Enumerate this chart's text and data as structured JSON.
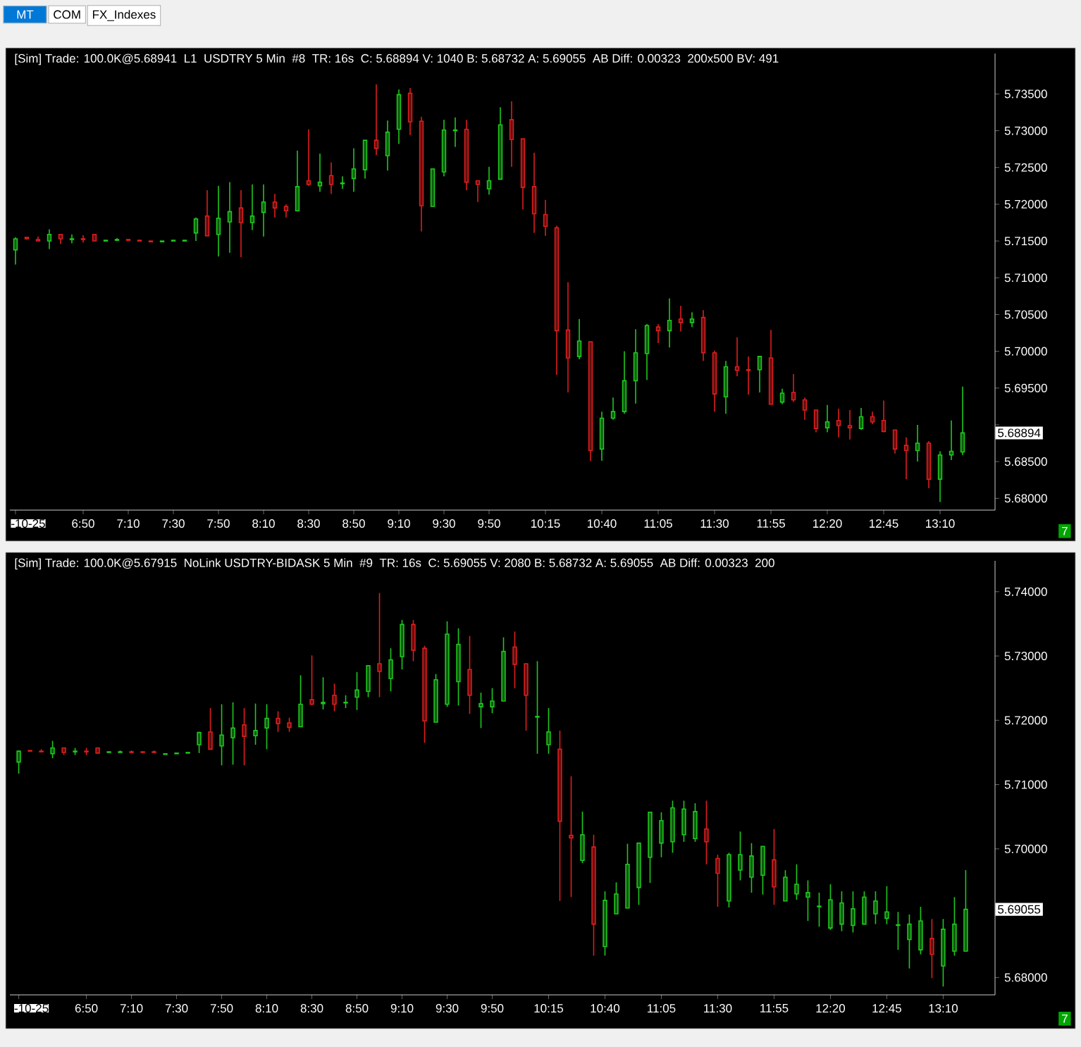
{
  "chart_data": [
    {
      "type": "other",
      "annotations": [
        "MT",
        "COM",
        "FX_Indexes"
      ]
    },
    {
      "type": "candlestick",
      "x": [
        6.3333,
        6.4167,
        6.5,
        6.5833,
        6.6667,
        6.75,
        6.8333,
        6.9167,
        7,
        7.0833,
        7.1667,
        7.25,
        7.3333,
        7.4167,
        7.5,
        7.5833,
        7.6667,
        7.75,
        7.8333,
        7.9167,
        8,
        8.0833,
        8.1667,
        8.25,
        8.3333,
        8.4167,
        8.5,
        8.5833,
        8.6667,
        8.75,
        8.8333,
        8.9167,
        9,
        9.0833,
        9.1667,
        9.25,
        9.3333,
        9.4167,
        9.5,
        9.5833,
        9.6667,
        9.75,
        9.8333,
        9.9167,
        10,
        10.0833,
        10.1667,
        10.25,
        10.3333,
        10.4167,
        10.5,
        10.5833,
        10.6667,
        10.75,
        10.8333,
        10.9167,
        11,
        11.0833,
        11.1667,
        11.25,
        11.3333,
        11.4167,
        11.5,
        11.5833,
        11.6667,
        11.75,
        11.8333,
        11.9167,
        12,
        12.0833,
        12.1667,
        12.25,
        12.3333,
        12.4167,
        12.5,
        12.5833,
        12.6667,
        12.75,
        12.8333,
        12.9167,
        13,
        13.0833,
        13.1667,
        13.25,
        13.3333
      ],
      "ohlc": [
        [
          5.7138,
          5.7155,
          5.7118,
          5.7153
        ],
        [
          5.7155,
          5.7155,
          5.7152,
          5.7153
        ],
        [
          5.7152,
          5.7156,
          5.715,
          5.715
        ],
        [
          5.715,
          5.7166,
          5.7139,
          5.7159
        ],
        [
          5.7159,
          5.7159,
          5.7146,
          5.7153
        ],
        [
          5.7152,
          5.7159,
          5.7147,
          5.7153
        ],
        [
          5.7153,
          5.7158,
          5.7148,
          5.7152
        ],
        [
          5.7159,
          5.7159,
          5.715,
          5.715
        ],
        [
          5.715,
          5.7151,
          5.715,
          5.7151
        ],
        [
          5.7151,
          5.7154,
          5.715,
          5.7152
        ],
        [
          5.7152,
          5.7152,
          5.7151,
          5.7151
        ],
        [
          5.7151,
          5.7151,
          5.715,
          5.715
        ],
        [
          5.715,
          5.715,
          5.7149,
          5.7149
        ],
        [
          5.7149,
          5.715,
          5.7149,
          5.715
        ],
        [
          5.715,
          5.7151,
          5.715,
          5.7151
        ],
        [
          5.715,
          5.7151,
          5.715,
          5.7151
        ],
        [
          5.7161,
          5.7182,
          5.715,
          5.718
        ],
        [
          5.7184,
          5.7219,
          5.7157,
          5.7157
        ],
        [
          5.7159,
          5.7225,
          5.7129,
          5.7181
        ],
        [
          5.7176,
          5.723,
          5.7134,
          5.719
        ],
        [
          5.7195,
          5.7219,
          5.7128,
          5.7175
        ],
        [
          5.7175,
          5.7227,
          5.7165,
          5.7184
        ],
        [
          5.7189,
          5.7227,
          5.7156,
          5.7203
        ],
        [
          5.7203,
          5.7214,
          5.7182,
          5.7195
        ],
        [
          5.7197,
          5.72,
          5.7182,
          5.7191
        ],
        [
          5.7191,
          5.7273,
          5.7191,
          5.7224
        ],
        [
          5.7232,
          5.7302,
          5.7225,
          5.7227
        ],
        [
          5.7225,
          5.7269,
          5.7217,
          5.723
        ],
        [
          5.7239,
          5.7257,
          5.7214,
          5.7227
        ],
        [
          5.7228,
          5.7238,
          5.7221,
          5.7229
        ],
        [
          5.7235,
          5.7276,
          5.7217,
          5.7248
        ],
        [
          5.7247,
          5.7287,
          5.7235,
          5.7287
        ],
        [
          5.7287,
          5.7363,
          5.7267,
          5.7276
        ],
        [
          5.7266,
          5.7314,
          5.7246,
          5.7298
        ],
        [
          5.7302,
          5.7356,
          5.7282,
          5.7349
        ],
        [
          5.7351,
          5.7358,
          5.7294,
          5.7312
        ],
        [
          5.7313,
          5.7319,
          5.7163,
          5.7198
        ],
        [
          5.7197,
          5.7248,
          5.7197,
          5.7248
        ],
        [
          5.7244,
          5.7315,
          5.7238,
          5.7301
        ],
        [
          5.73,
          5.7318,
          5.7278,
          5.7301
        ],
        [
          5.7302,
          5.7315,
          5.7219,
          5.723
        ],
        [
          5.7232,
          5.7232,
          5.7203,
          5.7227
        ],
        [
          5.7221,
          5.7251,
          5.7213,
          5.7232
        ],
        [
          5.7234,
          5.7332,
          5.7234,
          5.7308
        ],
        [
          5.7315,
          5.734,
          5.7251,
          5.7288
        ],
        [
          5.7289,
          5.7289,
          5.7193,
          5.7223
        ],
        [
          5.7224,
          5.727,
          5.7161,
          5.7187
        ],
        [
          5.7186,
          5.7206,
          5.7157,
          5.717
        ],
        [
          5.7168,
          5.7171,
          5.6968,
          5.7028
        ],
        [
          5.7029,
          5.7094,
          5.6944,
          5.6991
        ],
        [
          5.6993,
          5.7044,
          5.6989,
          5.7014
        ],
        [
          5.7013,
          5.7013,
          5.6851,
          5.6865
        ],
        [
          5.6867,
          5.6918,
          5.6851,
          5.6909
        ],
        [
          5.6909,
          5.6937,
          5.6907,
          5.6918
        ],
        [
          5.6918,
          5.7,
          5.6915,
          5.696
        ],
        [
          5.696,
          5.703,
          5.6929,
          5.6998
        ],
        [
          5.6997,
          5.7037,
          5.6961,
          5.7035
        ],
        [
          5.7033,
          5.7037,
          5.7011,
          5.7028
        ],
        [
          5.7028,
          5.7072,
          5.7005,
          5.7042
        ],
        [
          5.7044,
          5.7062,
          5.7027,
          5.7039
        ],
        [
          5.7039,
          5.7053,
          5.7033,
          5.7044
        ],
        [
          5.7046,
          5.7056,
          5.6987,
          5.6998
        ],
        [
          5.6998,
          5.7001,
          5.6918,
          5.6942
        ],
        [
          5.6938,
          5.6987,
          5.6915,
          5.6979
        ],
        [
          5.6979,
          5.7019,
          5.6966,
          5.6974
        ],
        [
          5.6975,
          5.6993,
          5.6941,
          5.6974
        ],
        [
          5.6975,
          5.6993,
          5.6944,
          5.6993
        ],
        [
          5.6991,
          5.7029,
          5.6928,
          5.6928
        ],
        [
          5.6931,
          5.6949,
          5.6928,
          5.6943
        ],
        [
          5.6944,
          5.6969,
          5.6931,
          5.6934
        ],
        [
          5.6934,
          5.6937,
          5.6907,
          5.692
        ],
        [
          5.692,
          5.692,
          5.689,
          5.6895
        ],
        [
          5.6896,
          5.6927,
          5.689,
          5.6904
        ],
        [
          5.6906,
          5.6922,
          5.6883,
          5.6899
        ],
        [
          5.6899,
          5.692,
          5.688,
          5.6896
        ],
        [
          5.6895,
          5.6923,
          5.6893,
          5.6911
        ],
        [
          5.6911,
          5.6918,
          5.6901,
          5.6904
        ],
        [
          5.6906,
          5.6933,
          5.689,
          5.6891
        ],
        [
          5.6893,
          5.6893,
          5.6861,
          5.6867
        ],
        [
          5.6872,
          5.6883,
          5.6826,
          5.6865
        ],
        [
          5.6865,
          5.69,
          5.685,
          5.6875
        ],
        [
          5.6875,
          5.6878,
          5.6814,
          5.6826
        ],
        [
          5.6826,
          5.6864,
          5.6795,
          5.6859
        ],
        [
          5.6859,
          5.6906,
          5.6852,
          5.6864
        ],
        [
          5.6863,
          5.6952,
          5.6859,
          5.6889
        ]
      ],
      "colors": [
        "#1ec81e",
        "#dc1e1e",
        "#dc1e1e",
        "#1ec81e",
        "#dc1e1e",
        "#1ec81e",
        "#dc1e1e",
        "#dc1e1e",
        "#1ec81e",
        "#1ec81e",
        "#dc1e1e",
        "#dc1e1e",
        "#dc1e1e",
        "#1ec81e",
        "#1ec81e",
        "#1ec81e",
        "#1ec81e",
        "#dc1e1e",
        "#1ec81e",
        "#1ec81e",
        "#dc1e1e",
        "#1ec81e",
        "#1ec81e",
        "#dc1e1e",
        "#dc1e1e",
        "#1ec81e",
        "#dc1e1e",
        "#1ec81e",
        "#dc1e1e",
        "#1ec81e",
        "#1ec81e",
        "#1ec81e",
        "#dc1e1e",
        "#1ec81e",
        "#1ec81e",
        "#dc1e1e",
        "#dc1e1e",
        "#1ec81e",
        "#1ec81e",
        "#1ec81e",
        "#dc1e1e",
        "#dc1e1e",
        "#1ec81e",
        "#1ec81e",
        "#dc1e1e",
        "#dc1e1e",
        "#dc1e1e",
        "#dc1e1e",
        "#dc1e1e",
        "#dc1e1e",
        "#1ec81e",
        "#dc1e1e",
        "#1ec81e",
        "#1ec81e",
        "#1ec81e",
        "#1ec81e",
        "#1ec81e",
        "#dc1e1e",
        "#1ec81e",
        "#dc1e1e",
        "#1ec81e",
        "#dc1e1e",
        "#dc1e1e",
        "#1ec81e",
        "#dc1e1e",
        "#dc1e1e",
        "#1ec81e",
        "#dc1e1e",
        "#1ec81e",
        "#dc1e1e",
        "#dc1e1e",
        "#dc1e1e",
        "#1ec81e",
        "#dc1e1e",
        "#dc1e1e",
        "#1ec81e",
        "#dc1e1e",
        "#dc1e1e",
        "#dc1e1e",
        "#dc1e1e",
        "#1ec81e",
        "#dc1e1e",
        "#1ec81e",
        "#1ec81e",
        "#1ec81e"
      ],
      "xlim": [
        6.2917,
        13.5729
      ],
      "ylim": [
        5.6784,
        5.7405
      ],
      "xticks": [
        {
          "value": 6.3333,
          "label": "-10-25"
        },
        {
          "value": 6.8333,
          "label": "6:50"
        },
        {
          "value": 7.1667,
          "label": "7:10"
        },
        {
          "value": 7.5,
          "label": "7:30"
        },
        {
          "value": 7.8333,
          "label": "7:50"
        },
        {
          "value": 8.1667,
          "label": "8:10"
        },
        {
          "value": 8.5,
          "label": "8:30"
        },
        {
          "value": 8.8333,
          "label": "8:50"
        },
        {
          "value": 9.1667,
          "label": "9:10"
        },
        {
          "value": 9.5,
          "label": "9:30"
        },
        {
          "value": 9.8333,
          "label": "9:50"
        },
        {
          "value": 10.25,
          "label": "10:15"
        },
        {
          "value": 10.6667,
          "label": "10:40"
        },
        {
          "value": 11.0833,
          "label": "11:05"
        },
        {
          "value": 11.5,
          "label": "11:30"
        },
        {
          "value": 11.9167,
          "label": "11:55"
        },
        {
          "value": 12.3333,
          "label": "12:20"
        },
        {
          "value": 12.75,
          "label": "12:45"
        },
        {
          "value": 13.1667,
          "label": "13:10"
        }
      ],
      "yticks": [
        {
          "value": 5.68,
          "label": "5.68000"
        },
        {
          "value": 5.685,
          "label": "5.68500"
        },
        {
          "value": 5.69,
          "label": null
        },
        {
          "value": 5.695,
          "label": "5.69500"
        },
        {
          "value": 5.7,
          "label": "5.70000"
        },
        {
          "value": 5.705,
          "label": "5.70500"
        },
        {
          "value": 5.71,
          "label": "5.71000"
        },
        {
          "value": 5.715,
          "label": "5.71500"
        },
        {
          "value": 5.72,
          "label": "5.72000"
        },
        {
          "value": 5.725,
          "label": "5.72500"
        },
        {
          "value": 5.73,
          "label": "5.73000"
        },
        {
          "value": 5.735,
          "label": "5.73500"
        }
      ],
      "annotations": [
        "[Sim]  Trade: 100.0K@5.68941",
        "L1",
        "USDTRY  5 Min",
        "#8",
        "TR: 16s",
        "C: 5.68894 V: 1040 B: 5.68732 A: 5.69055",
        "AB Diff: 0.00323",
        "200x500 BV: 491",
        "5.68894",
        "7"
      ]
    },
    {
      "type": "candlestick",
      "x": [
        6.3333,
        6.4167,
        6.5,
        6.5833,
        6.6667,
        6.75,
        6.8333,
        6.9167,
        7,
        7.0833,
        7.1667,
        7.25,
        7.3333,
        7.4167,
        7.5,
        7.5833,
        7.6667,
        7.75,
        7.8333,
        7.9167,
        8,
        8.0833,
        8.1667,
        8.25,
        8.3333,
        8.4167,
        8.5,
        8.5833,
        8.6667,
        8.75,
        8.8333,
        8.9167,
        9,
        9.0833,
        9.1667,
        9.25,
        9.3333,
        9.4167,
        9.5,
        9.5833,
        9.6667,
        9.75,
        9.8333,
        9.9167,
        10,
        10.0833,
        10.1667,
        10.25,
        10.3333,
        10.4167,
        10.5,
        10.5833,
        10.6667,
        10.75,
        10.8333,
        10.9167,
        11,
        11.0833,
        11.1667,
        11.25,
        11.3333,
        11.4167,
        11.5,
        11.5833,
        11.6667,
        11.75,
        11.8333,
        11.9167,
        12,
        12.0833,
        12.1667,
        12.25,
        12.3333,
        12.4167,
        12.5,
        12.5833,
        12.6667,
        12.75,
        12.8333,
        12.9167,
        13,
        13.0833,
        13.1667,
        13.25,
        13.3333
      ],
      "ohlc": [
        [
          5.7135,
          5.7153,
          5.7117,
          5.7152
        ],
        [
          5.7153,
          5.7153,
          5.7152,
          5.7152
        ],
        [
          5.7152,
          5.7155,
          5.7151,
          5.7151
        ],
        [
          5.7148,
          5.7168,
          5.7141,
          5.7157
        ],
        [
          5.7157,
          5.7157,
          5.7146,
          5.715
        ],
        [
          5.7151,
          5.7157,
          5.7146,
          5.7152
        ],
        [
          5.7152,
          5.7157,
          5.7146,
          5.7151
        ],
        [
          5.7157,
          5.7157,
          5.7149,
          5.7149
        ],
        [
          5.715,
          5.7151,
          5.715,
          5.7151
        ],
        [
          5.715,
          5.7153,
          5.715,
          5.7151
        ],
        [
          5.7151,
          5.7153,
          5.715,
          5.715
        ],
        [
          5.7151,
          5.7151,
          5.715,
          5.715
        ],
        [
          5.7151,
          5.7153,
          5.715,
          5.715
        ],
        [
          5.7147,
          5.7148,
          5.7147,
          5.7148
        ],
        [
          5.7148,
          5.7149,
          5.7148,
          5.7149
        ],
        [
          5.7149,
          5.715,
          5.7149,
          5.715
        ],
        [
          5.7162,
          5.7182,
          5.7149,
          5.7181
        ],
        [
          5.7182,
          5.7219,
          5.7155,
          5.7155
        ],
        [
          5.716,
          5.7225,
          5.713,
          5.7177
        ],
        [
          5.7173,
          5.7228,
          5.7131,
          5.7188
        ],
        [
          5.7193,
          5.7219,
          5.713,
          5.7175
        ],
        [
          5.7176,
          5.7226,
          5.7162,
          5.7184
        ],
        [
          5.7188,
          5.7225,
          5.7155,
          5.7203
        ],
        [
          5.7203,
          5.7214,
          5.7182,
          5.7195
        ],
        [
          5.7196,
          5.7204,
          5.7182,
          5.7189
        ],
        [
          5.719,
          5.727,
          5.719,
          5.7225
        ],
        [
          5.7232,
          5.7301,
          5.7224,
          5.7225
        ],
        [
          5.7226,
          5.7267,
          5.7217,
          5.7228
        ],
        [
          5.7239,
          5.7257,
          5.7214,
          5.7225
        ],
        [
          5.7227,
          5.7239,
          5.7219,
          5.7228
        ],
        [
          5.7236,
          5.7275,
          5.7216,
          5.7247
        ],
        [
          5.7245,
          5.7285,
          5.7236,
          5.7285
        ],
        [
          5.7288,
          5.7398,
          5.7236,
          5.7276
        ],
        [
          5.7265,
          5.7312,
          5.7245,
          5.7294
        ],
        [
          5.7299,
          5.7356,
          5.7279,
          5.7349
        ],
        [
          5.7349,
          5.7356,
          5.7292,
          5.7309
        ],
        [
          5.7312,
          5.7316,
          5.7165,
          5.7199
        ],
        [
          5.7197,
          5.7272,
          5.7197,
          5.7263
        ],
        [
          5.7225,
          5.7354,
          5.7221,
          5.7334
        ],
        [
          5.726,
          5.7343,
          5.7223,
          5.7318
        ],
        [
          5.7279,
          5.7331,
          5.721,
          5.7239
        ],
        [
          5.7221,
          5.7243,
          5.7188,
          5.7226
        ],
        [
          5.7221,
          5.725,
          5.7211,
          5.723
        ],
        [
          5.723,
          5.7329,
          5.723,
          5.7307
        ],
        [
          5.7314,
          5.7338,
          5.725,
          5.7287
        ],
        [
          5.7288,
          5.7288,
          5.7184,
          5.7239
        ],
        [
          5.7205,
          5.7292,
          5.7148,
          5.7206
        ],
        [
          5.7162,
          5.7219,
          5.7148,
          5.7182
        ],
        [
          5.7155,
          5.7184,
          5.6919,
          5.7043
        ],
        [
          5.7021,
          5.7113,
          5.6925,
          5.7017
        ],
        [
          5.6982,
          5.7058,
          5.6978,
          5.7022
        ],
        [
          5.7003,
          5.7022,
          5.6834,
          5.6883
        ],
        [
          5.6848,
          5.6934,
          5.6834,
          5.692
        ],
        [
          5.6899,
          5.6948,
          5.6899,
          5.693
        ],
        [
          5.6908,
          5.7008,
          5.6908,
          5.6976
        ],
        [
          5.694,
          5.7009,
          5.6913,
          5.7009
        ],
        [
          5.6987,
          5.7057,
          5.6947,
          5.7057
        ],
        [
          5.7009,
          5.7057,
          5.6987,
          5.7044
        ],
        [
          5.7011,
          5.7075,
          5.6994,
          5.7064
        ],
        [
          5.7022,
          5.7075,
          5.7011,
          5.7062
        ],
        [
          5.7016,
          5.7071,
          5.7011,
          5.7058
        ],
        [
          5.7031,
          5.7075,
          5.6976,
          5.7011
        ],
        [
          5.6985,
          5.6991,
          5.691,
          5.6962
        ],
        [
          5.6919,
          5.6994,
          5.6909,
          5.6991
        ],
        [
          5.6967,
          5.7027,
          5.6951,
          5.6991
        ],
        [
          5.6956,
          5.7009,
          5.6932,
          5.6989
        ],
        [
          5.6959,
          5.7004,
          5.6929,
          5.7004
        ],
        [
          5.6983,
          5.7031,
          5.6913,
          5.6941
        ],
        [
          5.6919,
          5.6967,
          5.6919,
          5.6956
        ],
        [
          5.693,
          5.6976,
          5.6921,
          5.6945
        ],
        [
          5.6925,
          5.6951,
          5.6888,
          5.6932
        ],
        [
          5.691,
          5.6932,
          5.6879,
          5.6911
        ],
        [
          5.6877,
          5.6945,
          5.6874,
          5.6921
        ],
        [
          5.6883,
          5.6934,
          5.6872,
          5.6916
        ],
        [
          5.6881,
          5.6934,
          5.687,
          5.6907
        ],
        [
          5.6883,
          5.6934,
          5.6883,
          5.6925
        ],
        [
          5.6899,
          5.6934,
          5.6883,
          5.6919
        ],
        [
          5.6892,
          5.6942,
          5.6883,
          5.6902
        ],
        [
          5.6881,
          5.6902,
          5.6843,
          5.6882
        ],
        [
          5.6859,
          5.6898,
          5.6814,
          5.6883
        ],
        [
          5.6843,
          5.691,
          5.6836,
          5.6888
        ],
        [
          5.6861,
          5.6891,
          5.6799,
          5.6836
        ],
        [
          5.6818,
          5.6891,
          5.6786,
          5.6875
        ],
        [
          5.6841,
          5.6925,
          5.6834,
          5.6883
        ],
        [
          5.6841,
          5.6967,
          5.6841,
          5.6906
        ]
      ],
      "colors": [
        "#1ec81e",
        "#dc1e1e",
        "#dc1e1e",
        "#1ec81e",
        "#dc1e1e",
        "#1ec81e",
        "#dc1e1e",
        "#dc1e1e",
        "#1ec81e",
        "#1ec81e",
        "#dc1e1e",
        "#dc1e1e",
        "#dc1e1e",
        "#1ec81e",
        "#1ec81e",
        "#1ec81e",
        "#1ec81e",
        "#dc1e1e",
        "#1ec81e",
        "#1ec81e",
        "#dc1e1e",
        "#1ec81e",
        "#1ec81e",
        "#dc1e1e",
        "#dc1e1e",
        "#1ec81e",
        "#dc1e1e",
        "#1ec81e",
        "#dc1e1e",
        "#1ec81e",
        "#1ec81e",
        "#1ec81e",
        "#dc1e1e",
        "#1ec81e",
        "#1ec81e",
        "#dc1e1e",
        "#dc1e1e",
        "#1ec81e",
        "#1ec81e",
        "#1ec81e",
        "#dc1e1e",
        "#1ec81e",
        "#1ec81e",
        "#1ec81e",
        "#dc1e1e",
        "#dc1e1e",
        "#1ec81e",
        "#1ec81e",
        "#dc1e1e",
        "#dc1e1e",
        "#1ec81e",
        "#dc1e1e",
        "#1ec81e",
        "#1ec81e",
        "#1ec81e",
        "#1ec81e",
        "#1ec81e",
        "#1ec81e",
        "#1ec81e",
        "#1ec81e",
        "#1ec81e",
        "#dc1e1e",
        "#dc1e1e",
        "#1ec81e",
        "#1ec81e",
        "#1ec81e",
        "#1ec81e",
        "#dc1e1e",
        "#1ec81e",
        "#1ec81e",
        "#1ec81e",
        "#1ec81e",
        "#1ec81e",
        "#1ec81e",
        "#1ec81e",
        "#1ec81e",
        "#1ec81e",
        "#1ec81e",
        "#1ec81e",
        "#1ec81e",
        "#1ec81e",
        "#dc1e1e",
        "#1ec81e",
        "#1ec81e",
        "#1ec81e"
      ],
      "xlim": [
        6.2677,
        13.55
      ],
      "ylim": [
        5.6773,
        5.7448
      ],
      "xticks": [
        {
          "value": 6.3333,
          "label": "-10-25"
        },
        {
          "value": 6.8333,
          "label": "6:50"
        },
        {
          "value": 7.1667,
          "label": "7:10"
        },
        {
          "value": 7.5,
          "label": "7:30"
        },
        {
          "value": 7.8333,
          "label": "7:50"
        },
        {
          "value": 8.1667,
          "label": "8:10"
        },
        {
          "value": 8.5,
          "label": "8:30"
        },
        {
          "value": 8.8333,
          "label": "8:50"
        },
        {
          "value": 9.1667,
          "label": "9:10"
        },
        {
          "value": 9.5,
          "label": "9:30"
        },
        {
          "value": 9.8333,
          "label": "9:50"
        },
        {
          "value": 10.25,
          "label": "10:15"
        },
        {
          "value": 10.6667,
          "label": "10:40"
        },
        {
          "value": 11.0833,
          "label": "11:05"
        },
        {
          "value": 11.5,
          "label": "11:30"
        },
        {
          "value": 11.9167,
          "label": "11:55"
        },
        {
          "value": 12.3333,
          "label": "12:20"
        },
        {
          "value": 12.75,
          "label": "12:45"
        },
        {
          "value": 13.1667,
          "label": "13:10"
        }
      ],
      "yticks": [
        {
          "value": 5.68,
          "label": "5.68000"
        },
        {
          "value": 5.69,
          "label": null
        },
        {
          "value": 5.7,
          "label": "5.70000"
        },
        {
          "value": 5.71,
          "label": "5.71000"
        },
        {
          "value": 5.72,
          "label": "5.72000"
        },
        {
          "value": 5.73,
          "label": "5.73000"
        },
        {
          "value": 5.74,
          "label": "5.74000"
        }
      ],
      "annotations": [
        "[Sim]  Trade: 100.0K@5.67915",
        "NoLink USDTRY-BIDASK  5 Min",
        "#9",
        "TR: 16s",
        "C: 5.69055 V: 2080 B: 5.68732 A: 5.69055",
        "AB Diff: 0.00323",
        "200",
        "5.69055",
        "7"
      ]
    }
  ]
}
